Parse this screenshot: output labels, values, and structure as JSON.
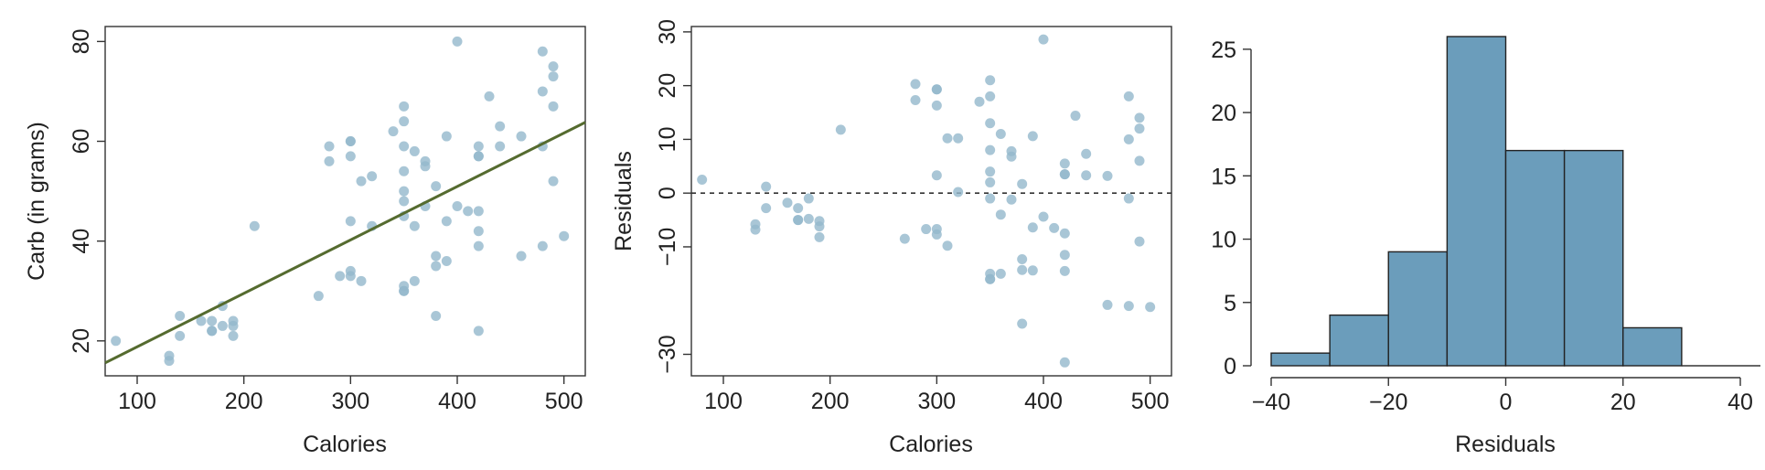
{
  "colors": {
    "point": "#94b8cc",
    "fit_line": "#556b2f",
    "bar_fill": "#6b9dbb",
    "bar_stroke": "#222222",
    "zero_line": "#333333"
  },
  "chart_data": [
    {
      "type": "scatter",
      "xlabel": "Calories",
      "ylabel": "Carb (in grams)",
      "xlim": [
        70,
        520
      ],
      "ylim": [
        13,
        83
      ],
      "xticks": [
        100,
        200,
        300,
        400,
        500
      ],
      "yticks": [
        20,
        40,
        60,
        80
      ],
      "fit_line": {
        "x": [
          70,
          520
        ],
        "y": [
          15.6,
          63.8
        ]
      },
      "points": [
        [
          80,
          20
        ],
        [
          130,
          17
        ],
        [
          130,
          16
        ],
        [
          140,
          25
        ],
        [
          140,
          21
        ],
        [
          160,
          24
        ],
        [
          170,
          22
        ],
        [
          170,
          22
        ],
        [
          170,
          24
        ],
        [
          180,
          27
        ],
        [
          180,
          23
        ],
        [
          190,
          24
        ],
        [
          190,
          23
        ],
        [
          190,
          21
        ],
        [
          210,
          43
        ],
        [
          270,
          29
        ],
        [
          280,
          59
        ],
        [
          280,
          56
        ],
        [
          290,
          33
        ],
        [
          300,
          60
        ],
        [
          300,
          60
        ],
        [
          300,
          57
        ],
        [
          300,
          44
        ],
        [
          300,
          34
        ],
        [
          300,
          33
        ],
        [
          310,
          52
        ],
        [
          310,
          32
        ],
        [
          320,
          53
        ],
        [
          320,
          43
        ],
        [
          340,
          62
        ],
        [
          350,
          67
        ],
        [
          350,
          64
        ],
        [
          350,
          59
        ],
        [
          350,
          54
        ],
        [
          350,
          50
        ],
        [
          350,
          48
        ],
        [
          350,
          45
        ],
        [
          350,
          31
        ],
        [
          350,
          30
        ],
        [
          350,
          30
        ],
        [
          360,
          58
        ],
        [
          360,
          43
        ],
        [
          360,
          32
        ],
        [
          370,
          56
        ],
        [
          370,
          55
        ],
        [
          370,
          47
        ],
        [
          380,
          51
        ],
        [
          380,
          37
        ],
        [
          380,
          35
        ],
        [
          380,
          25
        ],
        [
          390,
          61
        ],
        [
          390,
          44
        ],
        [
          390,
          36
        ],
        [
          400,
          80
        ],
        [
          400,
          47
        ],
        [
          410,
          46
        ],
        [
          420,
          59
        ],
        [
          420,
          57
        ],
        [
          420,
          57
        ],
        [
          420,
          46
        ],
        [
          420,
          42
        ],
        [
          420,
          39
        ],
        [
          420,
          22
        ],
        [
          430,
          69
        ],
        [
          440,
          63
        ],
        [
          440,
          59
        ],
        [
          460,
          61
        ],
        [
          460,
          37
        ],
        [
          480,
          78
        ],
        [
          480,
          70
        ],
        [
          480,
          59
        ],
        [
          480,
          39
        ],
        [
          490,
          75
        ],
        [
          490,
          73
        ],
        [
          490,
          67
        ],
        [
          490,
          52
        ],
        [
          500,
          41
        ]
      ]
    },
    {
      "type": "scatter",
      "xlabel": "Calories",
      "ylabel": "Residuals",
      "xlim": [
        70,
        520
      ],
      "ylim": [
        -34,
        31
      ],
      "xticks": [
        100,
        200,
        300,
        400,
        500
      ],
      "yticks": [
        -30,
        -10,
        0,
        10,
        20,
        30
      ],
      "ytick_labels": [
        "−30",
        "−10",
        "0",
        "10",
        "20",
        "30"
      ],
      "reference_line_y": 0,
      "points": [
        [
          80,
          2.5
        ],
        [
          130,
          -5.8
        ],
        [
          130,
          -6.8
        ],
        [
          140,
          1.2
        ],
        [
          140,
          -2.8
        ],
        [
          160,
          -1.8
        ],
        [
          170,
          -2.8
        ],
        [
          170,
          -5.0
        ],
        [
          170,
          -5.0
        ],
        [
          180,
          -1.0
        ],
        [
          180,
          -4.8
        ],
        [
          190,
          -5.2
        ],
        [
          190,
          -6.2
        ],
        [
          190,
          -8.2
        ],
        [
          210,
          11.8
        ],
        [
          270,
          -8.5
        ],
        [
          280,
          20.3
        ],
        [
          280,
          17.3
        ],
        [
          290,
          -6.7
        ],
        [
          300,
          19.3
        ],
        [
          300,
          19.3
        ],
        [
          300,
          16.3
        ],
        [
          300,
          3.3
        ],
        [
          300,
          -6.7
        ],
        [
          300,
          -7.7
        ],
        [
          310,
          10.2
        ],
        [
          310,
          -9.8
        ],
        [
          320,
          10.2
        ],
        [
          320,
          0.2
        ],
        [
          340,
          17.0
        ],
        [
          350,
          21.0
        ],
        [
          350,
          18.0
        ],
        [
          350,
          13.0
        ],
        [
          350,
          8.0
        ],
        [
          350,
          4.0
        ],
        [
          350,
          2.0
        ],
        [
          350,
          -1.0
        ],
        [
          350,
          -15.0
        ],
        [
          350,
          -16.0
        ],
        [
          350,
          -16.0
        ],
        [
          360,
          11.0
        ],
        [
          360,
          -4.0
        ],
        [
          360,
          -15.0
        ],
        [
          370,
          7.8
        ],
        [
          370,
          6.8
        ],
        [
          370,
          -1.2
        ],
        [
          380,
          1.7
        ],
        [
          380,
          -12.3
        ],
        [
          380,
          -14.3
        ],
        [
          380,
          -24.3
        ],
        [
          390,
          10.6
        ],
        [
          390,
          -6.4
        ],
        [
          390,
          -14.4
        ],
        [
          400,
          28.6
        ],
        [
          400,
          -4.4
        ],
        [
          410,
          -6.5
        ],
        [
          420,
          5.5
        ],
        [
          420,
          3.5
        ],
        [
          420,
          3.5
        ],
        [
          420,
          -7.5
        ],
        [
          420,
          -11.5
        ],
        [
          420,
          -14.5
        ],
        [
          420,
          -31.5
        ],
        [
          430,
          14.4
        ],
        [
          440,
          7.3
        ],
        [
          440,
          3.3
        ],
        [
          460,
          3.2
        ],
        [
          460,
          -20.8
        ],
        [
          480,
          18.0
        ],
        [
          480,
          10.0
        ],
        [
          480,
          -1.0
        ],
        [
          480,
          -21.0
        ],
        [
          490,
          14.0
        ],
        [
          490,
          12.0
        ],
        [
          490,
          6.0
        ],
        [
          490,
          -9.0
        ],
        [
          500,
          -21.2
        ]
      ]
    },
    {
      "type": "bar",
      "xlabel": "Residuals",
      "ylabel": "",
      "xlim": [
        -40,
        40
      ],
      "ylim": [
        0,
        26
      ],
      "xticks": [
        -40,
        -20,
        0,
        20,
        40
      ],
      "xtick_labels": [
        "−40",
        "−20",
        "0",
        "20",
        "40"
      ],
      "yticks": [
        0,
        5,
        10,
        15,
        20,
        25
      ],
      "bins": [
        [
          -40,
          -30
        ],
        [
          -30,
          -20
        ],
        [
          -20,
          -10
        ],
        [
          -10,
          0
        ],
        [
          0,
          10
        ],
        [
          10,
          20
        ],
        [
          20,
          30
        ]
      ],
      "values": [
        1,
        4,
        9,
        26,
        17,
        17,
        3
      ]
    }
  ]
}
